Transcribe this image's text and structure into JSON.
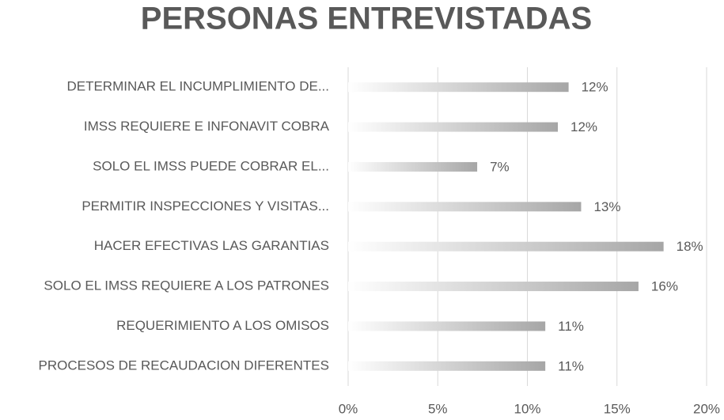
{
  "chart_data": {
    "type": "hbar",
    "title": "PERSONAS ENTREVISTADAS",
    "categories": [
      "DETERMINAR EL INCUMPLIMIENTO DE...",
      "IMSS REQUIERE E INFONAVIT COBRA",
      "SOLO EL IMSS PUEDE COBRAR EL...",
      "PERMITIR INSPECCIONES Y VISITAS...",
      "HACER EFECTIVAS LAS GARANTIAS",
      "SOLO EL IMSS REQUIERE A LOS PATRONES",
      "REQUERIMIENTO A LOS OMISOS",
      "PROCESOS DE RECAUDACION DIFERENTES"
    ],
    "values": [
      12.3,
      11.7,
      7.2,
      13,
      17.6,
      16.2,
      11,
      11
    ],
    "value_labels": [
      "12%",
      "12%",
      "7%",
      "13%",
      "18%",
      "16%",
      "11%",
      "11%"
    ],
    "color": "#a6a6a6",
    "xlim": [
      0,
      20
    ],
    "xticks": [
      {
        "value": 0,
        "label": "0%"
      },
      {
        "value": 5,
        "label": "5%"
      },
      {
        "value": 10,
        "label": "10%"
      },
      {
        "value": 15,
        "label": "15%"
      },
      {
        "value": 20,
        "label": "20%"
      }
    ],
    "grid": true
  }
}
